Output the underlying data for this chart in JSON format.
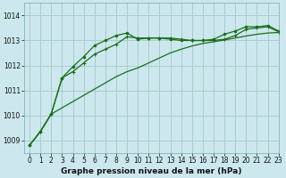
{
  "title": "Graphe pression niveau de la mer (hPa)",
  "bg_color": "#cce8ee",
  "grid_color": "#aacccc",
  "line_color": "#1a6e1a",
  "xlim": [
    -0.5,
    23
  ],
  "ylim": [
    1008.5,
    1014.5
  ],
  "yticks": [
    1009,
    1010,
    1011,
    1012,
    1013,
    1014
  ],
  "xticks": [
    0,
    1,
    2,
    3,
    4,
    5,
    6,
    7,
    8,
    9,
    10,
    11,
    12,
    13,
    14,
    15,
    16,
    17,
    18,
    19,
    20,
    21,
    22,
    23
  ],
  "series1_smooth": {
    "x": [
      0,
      1,
      2,
      3,
      4,
      5,
      6,
      7,
      8,
      9,
      10,
      11,
      12,
      13,
      14,
      15,
      16,
      17,
      18,
      19,
      20,
      21,
      22,
      23
    ],
    "y": [
      1008.8,
      1009.35,
      1010.05,
      1010.3,
      1010.55,
      1010.8,
      1011.05,
      1011.3,
      1011.55,
      1011.75,
      1011.9,
      1012.1,
      1012.3,
      1012.5,
      1012.65,
      1012.78,
      1012.88,
      1012.95,
      1013.02,
      1013.1,
      1013.18,
      1013.25,
      1013.3,
      1013.32
    ]
  },
  "series2_cross": {
    "x": [
      0,
      1,
      2,
      3,
      4,
      5,
      6,
      7,
      8,
      9,
      10,
      11,
      12,
      13,
      14,
      15,
      16,
      17,
      18,
      19,
      20,
      21,
      22,
      23
    ],
    "y": [
      1008.8,
      1009.35,
      1010.05,
      1011.5,
      1011.75,
      1012.1,
      1012.45,
      1012.65,
      1012.85,
      1013.15,
      1013.1,
      1013.1,
      1013.1,
      1013.1,
      1013.05,
      1013.0,
      1013.0,
      1013.0,
      1013.05,
      1013.2,
      1013.45,
      1013.5,
      1013.55,
      1013.35
    ]
  },
  "series3_dot": {
    "x": [
      0,
      1,
      2,
      3,
      4,
      5,
      6,
      7,
      8,
      9,
      10,
      11,
      12,
      13,
      14,
      15,
      16,
      17,
      18,
      19,
      20,
      21,
      22,
      23
    ],
    "y": [
      1008.8,
      1009.35,
      1010.05,
      1011.5,
      1011.95,
      1012.35,
      1012.8,
      1013.0,
      1013.2,
      1013.3,
      1013.05,
      1013.1,
      1013.1,
      1013.05,
      1013.0,
      1013.0,
      1013.0,
      1013.05,
      1013.25,
      1013.38,
      1013.55,
      1013.55,
      1013.6,
      1013.38
    ]
  },
  "title_fontsize": 6.5,
  "tick_fontsize": 5.5
}
